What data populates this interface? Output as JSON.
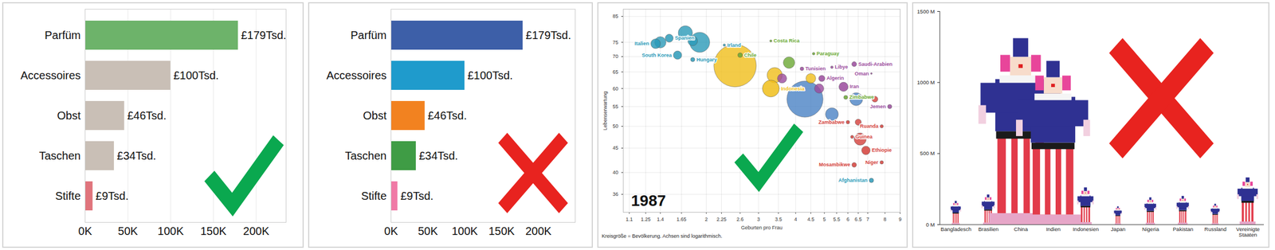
{
  "chart_data": [
    {
      "type": "bar",
      "orientation": "horizontal",
      "categories": [
        "Parfüm",
        "Accessoires",
        "Obst",
        "Taschen",
        "Stifte"
      ],
      "values": [
        179000,
        100000,
        46000,
        34000,
        9000
      ],
      "value_labels": [
        "£179Tsd.",
        "£100Tsd.",
        "£46Tsd.",
        "£34Tsd.",
        "£9Tsd."
      ],
      "data_labels": true,
      "colors": [
        "#6db36a",
        "#c9bfb6",
        "#c9bfb6",
        "#c9bfb6",
        "#e0747c"
      ],
      "xlim": [
        0,
        235000
      ],
      "xticks": [
        {
          "value": 0,
          "label": "0K"
        },
        {
          "value": 50000,
          "label": "50K"
        },
        {
          "value": 100000,
          "label": "100K"
        },
        {
          "value": 150000,
          "label": "150K"
        },
        {
          "value": 200000,
          "label": "200K"
        }
      ],
      "grid": true
    },
    {
      "type": "bar",
      "orientation": "horizontal",
      "categories": [
        "Parfüm",
        "Accessoires",
        "Obst",
        "Taschen",
        "Stifte"
      ],
      "values": [
        179000,
        100000,
        46000,
        34000,
        9000
      ],
      "value_labels": [
        "£179Tsd.",
        "£100Tsd.",
        "£46Tsd.",
        "£34Tsd.",
        "£9Tsd."
      ],
      "data_labels": true,
      "colors": [
        "#3d5fa8",
        "#1f9bcc",
        "#f28220",
        "#3f9c45",
        "#f07aa6"
      ],
      "xlim": [
        0,
        250000
      ],
      "xticks": [
        {
          "value": 0,
          "label": "0K"
        },
        {
          "value": 50000,
          "label": "50K"
        },
        {
          "value": 100000,
          "label": "100K"
        },
        {
          "value": 150000,
          "label": "150K"
        },
        {
          "value": 200000,
          "label": "200K"
        }
      ],
      "grid": false
    },
    {
      "type": "scatter",
      "x": [
        1.5,
        1.35,
        1.6,
        1.8,
        2.3,
        2.6,
        3.3,
        4.6,
        4.2,
        5.3,
        6.3,
        4.9,
        5.8,
        7.2,
        5.9,
        3.3,
        8.3,
        7.8,
        6.0,
        6.2,
        6.9,
        7.8,
        6.3,
        7.2,
        2.5,
        4.3,
        1.9,
        1.7,
        1.4,
        1.8,
        3.4,
        3.8,
        6.6,
        6.4,
        5.3,
        4.8,
        4.5,
        3.6,
        7.4,
        6.5
      ],
      "values": [
        76.5,
        74.5,
        70.5,
        69,
        74,
        70.5,
        75.5,
        71,
        66,
        66.5,
        67.5,
        63,
        60.5,
        64.5,
        57.5,
        60,
        55,
        50,
        51,
        47.5,
        44.5,
        42,
        41.5,
        38.5,
        67,
        57,
        75,
        78.5,
        75,
        75.5,
        64,
        68,
        47,
        57,
        53,
        60,
        63,
        63,
        57,
        51
      ],
      "sizes": [
        38.6,
        56.6,
        42,
        10.6,
        3.5,
        12.6,
        2.9,
        3.9,
        7.8,
        3.9,
        14,
        23,
        51,
        1.6,
        9.2,
        172,
        10.5,
        6.4,
        7.3,
        5.8,
        44,
        7.2,
        13,
        11.6,
        1090,
        790,
        243,
        122,
        78,
        57,
        140,
        80,
        90,
        100,
        100,
        52,
        58,
        52,
        21,
        23
      ],
      "colors": [
        "#2b9ab8",
        "#2b9ab8",
        "#2b9ab8",
        "#2b9ab8",
        "#2b9ab8",
        "#6aa832",
        "#6aa832",
        "#6aa832",
        "#9a4a9c",
        "#9a4a9c",
        "#9a4a9c",
        "#9a4a9c",
        "#9a4a9c",
        "#9a4a9c",
        "#6aa832",
        "#f0be1a",
        "#9a4a9c",
        "#d33f3a",
        "#d33f3a",
        "#d33f3a",
        "#d33f3a",
        "#d33f3a",
        "#d33f3a",
        "#2b9ab8",
        "#f0be1a",
        "#4a82c4",
        "#2b9ab8",
        "#2b9ab8",
        "#2b9ab8",
        "#2b9ab8",
        "#f0be1a",
        "#6aa832",
        "#d33f3a",
        "#4a82c4",
        "#4a82c4",
        "#9a4a9c",
        "#f0be1a",
        "#9a4a9c",
        "#d33f3a",
        "#d33f3a"
      ],
      "labels": [
        "Spanien",
        "Italien",
        "South Korea",
        "Hungary",
        "Irland",
        "Chile",
        "Costa Rica",
        "Paraguay",
        "Tunisien",
        "Libye",
        "Saudi-Arabien",
        "Algerin",
        "Iran",
        "Oman",
        "Zimbabwe",
        "Indonesia",
        "Jemen",
        "Ruanda",
        "Zambabwe",
        "Guinea",
        "Ethiopie",
        "Niger",
        "Mosambikwe",
        "Afghanistan",
        null,
        null,
        null,
        null,
        null,
        null,
        null,
        null,
        null,
        null,
        null,
        null,
        null,
        null,
        null,
        null
      ],
      "xlabel": "Geburten pro Frau",
      "ylabel": "Lebenserwartung",
      "xlim": [
        1.05,
        9
      ],
      "ylim": [
        33,
        88
      ],
      "xticks": [
        1.1,
        1.25,
        1.4,
        1.65,
        2,
        2.25,
        2.6,
        3,
        3.5,
        4,
        4.5,
        5,
        5.5,
        6,
        6.5,
        7,
        8,
        9
      ],
      "yticks": [
        36,
        40,
        45,
        50,
        55,
        60,
        65,
        70,
        75,
        85
      ],
      "log": true,
      "grid": true,
      "annotation": "1987",
      "caption": "Kreisgröße = Bevölkerung. Achsen sind logarithmisch."
    },
    {
      "type": "bar",
      "marker": "clown",
      "categories": [
        "Bangladesch",
        "Brasilien",
        "China",
        "Indien",
        "Indonesien",
        "Japan",
        "Nigeria",
        "Pakistan",
        "Russland",
        "Vereinigte Staaten"
      ],
      "values": [
        165,
        210,
        1310,
        1150,
        260,
        127,
        190,
        200,
        145,
        330
      ],
      "ylim": [
        0,
        1500
      ],
      "yticks": [
        {
          "value": 0,
          "label": "0 M"
        },
        {
          "value": 500,
          "label": "500 M"
        },
        {
          "value": 1000,
          "label": "1000 M"
        },
        {
          "value": 1500,
          "label": "1500 M"
        }
      ]
    }
  ]
}
